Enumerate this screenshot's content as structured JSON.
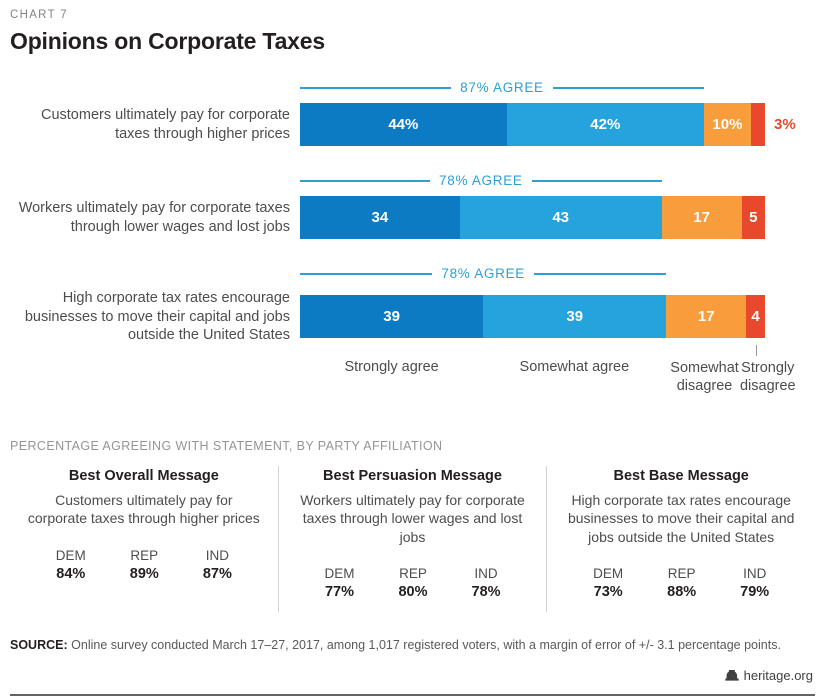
{
  "header": {
    "eyebrow": "CHART 7",
    "title": "Opinions on Corporate Taxes"
  },
  "chart_data": {
    "type": "bar",
    "orientation": "horizontal",
    "stacked": true,
    "unit": "percent",
    "categories": [
      "Strongly agree",
      "Somewhat agree",
      "Somewhat disagree",
      "Strongly disagree"
    ],
    "colors": {
      "segments": [
        "#0d7ac4",
        "#25a3dd",
        "#f89c3c",
        "#e8492c"
      ],
      "agree_accent": "#2d9fd8"
    },
    "rows": [
      {
        "label": "Customers ultimately pay for corporate taxes through higher prices",
        "values": [
          44,
          42,
          10,
          3
        ],
        "value_labels": [
          "44%",
          "42%",
          "10%",
          ""
        ],
        "outside_label": "3%",
        "agree_label": "87% AGREE"
      },
      {
        "label": "Workers ultimately pay for corporate taxes through lower wages and lost jobs",
        "values": [
          34,
          43,
          17,
          5
        ],
        "value_labels": [
          "34",
          "43",
          "17",
          "5"
        ],
        "outside_label": "",
        "agree_label": "78% AGREE"
      },
      {
        "label": "High corporate tax rates encourage businesses to move their capital and jobs outside the United States",
        "values": [
          39,
          39,
          17,
          4
        ],
        "value_labels": [
          "39",
          "39",
          "17",
          "4"
        ],
        "outside_label": "",
        "agree_label": "78% AGREE"
      }
    ]
  },
  "party_section": {
    "title": "PERCENTAGE AGREEING WITH STATEMENT, BY PARTY AFFILIATION",
    "columns": [
      {
        "heading": "Best Overall Message",
        "statement": "Customers ultimately pay for corporate taxes through higher prices",
        "stats": [
          {
            "label": "DEM",
            "value": "84%"
          },
          {
            "label": "REP",
            "value": "89%"
          },
          {
            "label": "IND",
            "value": "87%"
          }
        ]
      },
      {
        "heading": "Best Persuasion Message",
        "statement": "Workers ultimately pay for corporate taxes through lower wages and lost jobs",
        "stats": [
          {
            "label": "DEM",
            "value": "77%"
          },
          {
            "label": "REP",
            "value": "80%"
          },
          {
            "label": "IND",
            "value": "78%"
          }
        ]
      },
      {
        "heading": "Best Base Message",
        "statement": "High corporate tax rates encourage businesses to move their capital and jobs outside the United States",
        "stats": [
          {
            "label": "DEM",
            "value": "73%"
          },
          {
            "label": "REP",
            "value": "88%"
          },
          {
            "label": "IND",
            "value": "79%"
          }
        ]
      }
    ]
  },
  "source": {
    "label": "SOURCE:",
    "text": "Online survey conducted March 17–27, 2017, among 1,017 registered voters, with a margin of error of +/- 3.1 percentage points."
  },
  "footer": {
    "site": "heritage.org"
  }
}
